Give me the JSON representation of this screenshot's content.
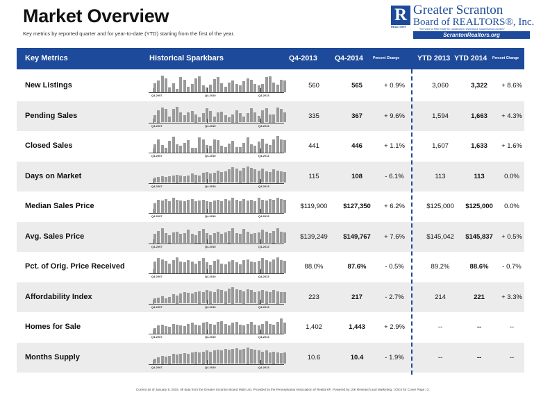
{
  "header": {
    "title": "Market Overview",
    "subtitle": "Key metrics by reported quarter and for year-to-date (YTD) starting from the first of the year."
  },
  "logo": {
    "letter": "R",
    "realtor_mark": "REALTOR®",
    "line1": "Greater Scranton",
    "line2": "Board of REALTORS®, Inc.",
    "tagline": "\"The Voice of Real Estate for Lackawanna, Wyoming & Susquehanna Counties\"",
    "url": "ScrantonRealtors.org"
  },
  "table": {
    "columns": {
      "metric": "Key Metrics",
      "spark": "Historical Sparkbars",
      "q1": "Q4-2013",
      "q2": "Q4-2014",
      "pc1": "Percent Change",
      "y1": "YTD 2013",
      "y2": "YTD 2014",
      "pc2": "Percent Change"
    },
    "spark_ticks": [
      "Q4-2007",
      "Q4-2010",
      "Q4-2013"
    ],
    "rows": [
      {
        "name": "New Listings",
        "q1": "560",
        "q2": "565",
        "pc1": "+ 0.9%",
        "y1": "3,060",
        "y2": "3,322",
        "pc2": "+ 8.6%"
      },
      {
        "name": "Pending Sales",
        "q1": "335",
        "q2": "367",
        "pc1": "+ 9.6%",
        "y1": "1,594",
        "y2": "1,663",
        "pc2": "+ 4.3%"
      },
      {
        "name": "Closed Sales",
        "q1": "441",
        "q2": "446",
        "pc1": "+ 1.1%",
        "y1": "1,607",
        "y2": "1,633",
        "pc2": "+ 1.6%"
      },
      {
        "name": "Days on Market",
        "q1": "115",
        "q2": "108",
        "pc1": "- 6.1%",
        "y1": "113",
        "y2": "113",
        "pc2": "0.0%"
      },
      {
        "name": "Median Sales Price",
        "q1": "$119,900",
        "q2": "$127,350",
        "pc1": "+ 6.2%",
        "y1": "$125,000",
        "y2": "$125,000",
        "pc2": "0.0%"
      },
      {
        "name": "Avg. Sales Price",
        "q1": "$139,249",
        "q2": "$149,767",
        "pc1": "+ 7.6%",
        "y1": "$145,042",
        "y2": "$145,837",
        "pc2": "+ 0.5%"
      },
      {
        "name": "Pct. of Orig. Price Received",
        "q1": "88.0%",
        "q2": "87.6%",
        "pc1": "- 0.5%",
        "y1": "89.2%",
        "y2": "88.6%",
        "pc2": "- 0.7%"
      },
      {
        "name": "Affordability Index",
        "q1": "223",
        "q2": "217",
        "pc1": "- 2.7%",
        "y1": "214",
        "y2": "221",
        "pc2": "+ 3.3%"
      },
      {
        "name": "Homes for Sale",
        "q1": "1,402",
        "q2": "1,443",
        "pc1": "+ 2.9%",
        "y1": "--",
        "y2": "--",
        "pc2": "--"
      },
      {
        "name": "Months Supply",
        "q1": "10.6",
        "q2": "10.4",
        "pc1": "- 1.9%",
        "y1": "--",
        "y2": "--",
        "pc2": "--"
      }
    ]
  },
  "sparkbars": [
    [
      0.55,
      0.7,
      1.0,
      0.85,
      0.3,
      0.55,
      0.2,
      0.9,
      0.75,
      0.35,
      0.5,
      0.85,
      0.95,
      0.4,
      0.3,
      0.45,
      0.8,
      0.9,
      0.55,
      0.35,
      0.6,
      0.7,
      0.5,
      0.4,
      0.65,
      0.85,
      0.75,
      0.5,
      0.4,
      0.5,
      0.9,
      0.95,
      0.6,
      0.45,
      0.75,
      0.7
    ],
    [
      0.45,
      0.75,
      0.9,
      0.8,
      0.35,
      0.8,
      0.95,
      0.6,
      0.45,
      0.6,
      0.7,
      0.5,
      0.3,
      0.55,
      0.85,
      0.7,
      0.35,
      0.6,
      0.65,
      0.45,
      0.3,
      0.5,
      0.75,
      0.55,
      0.35,
      0.55,
      0.85,
      0.6,
      0.4,
      0.75,
      0.85,
      0.5,
      0.5,
      0.9,
      0.8,
      0.6
    ],
    [
      0.5,
      0.8,
      0.45,
      0.3,
      0.7,
      0.95,
      0.5,
      0.4,
      0.6,
      0.75,
      0.3,
      0.3,
      0.9,
      0.8,
      0.45,
      0.4,
      0.8,
      0.75,
      0.4,
      0.35,
      0.55,
      0.7,
      0.35,
      0.35,
      0.6,
      0.9,
      0.5,
      0.4,
      0.65,
      0.85,
      0.55,
      0.45,
      0.8,
      1.0,
      0.8,
      0.75
    ],
    [
      0.3,
      0.35,
      0.4,
      0.35,
      0.4,
      0.45,
      0.5,
      0.45,
      0.4,
      0.45,
      0.55,
      0.5,
      0.45,
      0.6,
      0.65,
      0.55,
      0.6,
      0.75,
      0.65,
      0.7,
      0.8,
      0.95,
      0.85,
      0.75,
      0.9,
      1.0,
      0.9,
      0.8,
      0.75,
      0.85,
      0.7,
      0.65,
      0.8,
      0.75,
      0.7,
      0.65
    ],
    [
      0.6,
      0.8,
      0.75,
      0.85,
      0.7,
      0.9,
      0.8,
      0.75,
      0.7,
      0.8,
      0.85,
      0.7,
      0.75,
      0.8,
      0.7,
      0.65,
      0.75,
      0.8,
      0.7,
      0.85,
      0.75,
      0.9,
      0.8,
      0.7,
      0.85,
      0.75,
      0.8,
      0.7,
      0.9,
      0.8,
      0.75,
      0.85,
      0.8,
      0.9,
      0.85,
      0.8
    ],
    [
      0.55,
      0.75,
      0.9,
      0.6,
      0.5,
      0.65,
      0.7,
      0.55,
      0.6,
      0.8,
      0.55,
      0.5,
      0.75,
      0.85,
      0.6,
      0.5,
      0.6,
      0.7,
      0.55,
      0.65,
      0.75,
      0.9,
      0.6,
      0.55,
      0.85,
      0.7,
      0.55,
      0.6,
      0.65,
      0.8,
      0.7,
      0.6,
      0.75,
      0.9,
      0.7,
      0.65
    ],
    [
      0.7,
      0.9,
      0.85,
      0.75,
      0.6,
      0.8,
      0.95,
      0.7,
      0.65,
      0.8,
      0.7,
      0.6,
      0.75,
      0.9,
      0.65,
      0.5,
      0.75,
      0.85,
      0.6,
      0.55,
      0.7,
      0.8,
      0.65,
      0.55,
      0.8,
      0.85,
      0.7,
      0.65,
      0.75,
      0.9,
      0.8,
      0.7,
      0.85,
      0.95,
      0.8,
      0.75
    ],
    [
      0.3,
      0.35,
      0.45,
      0.3,
      0.4,
      0.55,
      0.5,
      0.6,
      0.7,
      0.65,
      0.6,
      0.7,
      0.75,
      0.7,
      0.8,
      0.75,
      0.7,
      0.85,
      0.8,
      0.75,
      0.9,
      1.0,
      0.85,
      0.8,
      0.75,
      0.85,
      0.8,
      0.7,
      0.75,
      0.8,
      0.75,
      0.7,
      0.8,
      0.75,
      0.7,
      0.7
    ],
    [
      0.35,
      0.5,
      0.55,
      0.45,
      0.4,
      0.6,
      0.55,
      0.5,
      0.45,
      0.6,
      0.65,
      0.55,
      0.5,
      0.65,
      0.7,
      0.6,
      0.55,
      0.7,
      0.75,
      0.6,
      0.5,
      0.65,
      0.7,
      0.55,
      0.5,
      0.6,
      0.7,
      0.55,
      0.5,
      0.6,
      0.75,
      0.6,
      0.55,
      0.7,
      0.9,
      0.65
    ],
    [
      0.3,
      0.4,
      0.5,
      0.45,
      0.5,
      0.6,
      0.55,
      0.6,
      0.65,
      0.6,
      0.7,
      0.75,
      0.7,
      0.75,
      0.8,
      0.75,
      0.8,
      0.85,
      0.8,
      0.9,
      0.85,
      0.9,
      0.95,
      0.85,
      0.9,
      1.0,
      0.9,
      0.85,
      0.8,
      0.75,
      0.8,
      0.7,
      0.75,
      0.7,
      0.65,
      0.7
    ]
  ],
  "footer": {
    "text": "Current as of January 9, 2015. All data from the Greater Scranton Board Multi List. Provided by the Pennsylvania Association of Realtors®. Powered by 10K Research and Marketing.  |  Click for Cover Page  |  2"
  }
}
